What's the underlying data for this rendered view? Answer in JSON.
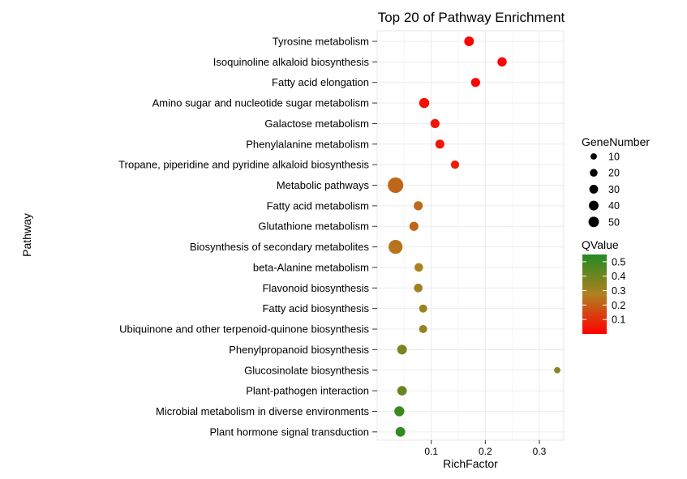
{
  "chart_data": {
    "type": "scatter",
    "title": "Top 20 of Pathway Enrichment",
    "xlabel": "RichFactor",
    "ylabel": "Pathway",
    "xlim": [
      0.0,
      0.345
    ],
    "xticks": [
      0.1,
      0.2,
      0.3
    ],
    "xtick_labels": [
      "0.1",
      "0.2",
      "0.3"
    ],
    "grid": true,
    "points": [
      {
        "pathway": "Tyrosine metabolism",
        "rich_factor": 0.17,
        "gene_number": 14,
        "qvalue": 0.005
      },
      {
        "pathway": "Isoquinoline alkaloid biosynthesis",
        "rich_factor": 0.231,
        "gene_number": 12,
        "qvalue": 0.006
      },
      {
        "pathway": "Fatty acid elongation",
        "rich_factor": 0.182,
        "gene_number": 11,
        "qvalue": 0.01
      },
      {
        "pathway": "Amino sugar and nucleotide sugar metabolism",
        "rich_factor": 0.087,
        "gene_number": 16,
        "qvalue": 0.03
      },
      {
        "pathway": "Galactose metabolism",
        "rich_factor": 0.107,
        "gene_number": 11,
        "qvalue": 0.04
      },
      {
        "pathway": "Phenylalanine metabolism",
        "rich_factor": 0.116,
        "gene_number": 11,
        "qvalue": 0.05
      },
      {
        "pathway": "Tropane, piperidine and pyridine alkaloid biosynthesis",
        "rich_factor": 0.144,
        "gene_number": 8,
        "qvalue": 0.06
      },
      {
        "pathway": "Metabolic pathways",
        "rich_factor": 0.034,
        "gene_number": 60,
        "qvalue": 0.22
      },
      {
        "pathway": "Fatty acid metabolism",
        "rich_factor": 0.076,
        "gene_number": 11,
        "qvalue": 0.23
      },
      {
        "pathway": "Glutathione metabolism",
        "rich_factor": 0.068,
        "gene_number": 11,
        "qvalue": 0.22
      },
      {
        "pathway": "Biosynthesis of secondary metabolites",
        "rich_factor": 0.034,
        "gene_number": 45,
        "qvalue": 0.25
      },
      {
        "pathway": "beta-Alanine metabolism",
        "rich_factor": 0.077,
        "gene_number": 9,
        "qvalue": 0.29
      },
      {
        "pathway": "Flavonoid biosynthesis",
        "rich_factor": 0.076,
        "gene_number": 9,
        "qvalue": 0.31
      },
      {
        "pathway": "Fatty acid biosynthesis",
        "rich_factor": 0.085,
        "gene_number": 7,
        "qvalue": 0.32
      },
      {
        "pathway": "Ubiquinone and other terpenoid-quinone biosynthesis",
        "rich_factor": 0.085,
        "gene_number": 7,
        "qvalue": 0.33
      },
      {
        "pathway": "Phenylpropanoid biosynthesis",
        "rich_factor": 0.046,
        "gene_number": 14,
        "qvalue": 0.37
      },
      {
        "pathway": "Glucosinolate biosynthesis",
        "rich_factor": 0.333,
        "gene_number": 2,
        "qvalue": 0.35
      },
      {
        "pathway": "Plant-pathogen interaction",
        "rich_factor": 0.046,
        "gene_number": 13,
        "qvalue": 0.41
      },
      {
        "pathway": "Microbial metabolism in diverse environments",
        "rich_factor": 0.041,
        "gene_number": 16,
        "qvalue": 0.5
      },
      {
        "pathway": "Plant hormone signal transduction",
        "rich_factor": 0.043,
        "gene_number": 14,
        "qvalue": 0.52
      }
    ],
    "size_legend": {
      "title": "GeneNumber",
      "values": [
        10,
        20,
        30,
        40,
        50
      ],
      "labels": [
        "10",
        "20",
        "30",
        "40",
        "50"
      ]
    },
    "color_legend": {
      "title": "QValue",
      "min": 0.0,
      "max": 0.55,
      "ticks": [
        0.1,
        0.2,
        0.3,
        0.4,
        0.5
      ],
      "tick_labels": [
        "0.1",
        "0.2",
        "0.3",
        "0.4",
        "0.5"
      ],
      "low_color": "#ff0000",
      "high_color": "#228b22"
    },
    "colors": {
      "grid": "#ececec",
      "panel": "#ffffff"
    }
  }
}
